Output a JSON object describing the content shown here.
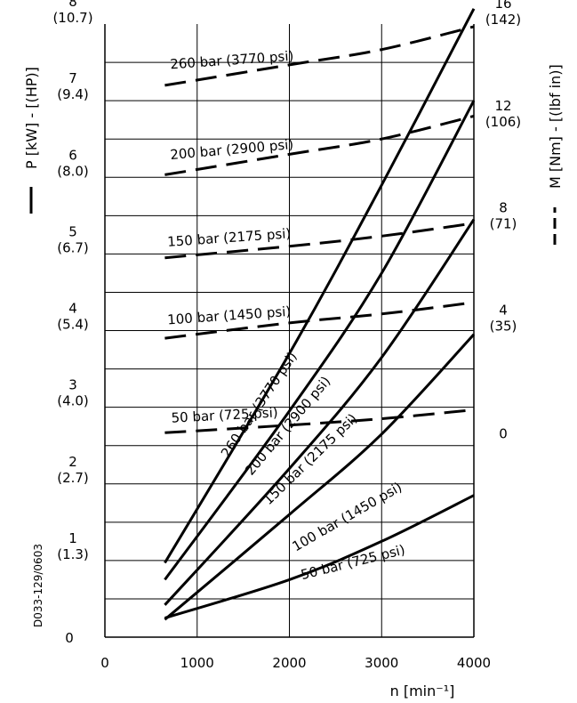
{
  "colors": {
    "ink": "#000000",
    "background": "#ffffff"
  },
  "chart_data": {
    "type": "line",
    "document_code": "D033-129/0603",
    "xlabel": "n [min⁻¹]",
    "x_ticks": [
      "0",
      "1000",
      "2000",
      "3000",
      "4000"
    ],
    "xlim": [
      0,
      4000
    ],
    "ylabel_left": "P [kW] - [(HP)]",
    "ylim_left": [
      0,
      8
    ],
    "y_ticks_left": [
      {
        "value": 0,
        "kw": "0",
        "hp": ""
      },
      {
        "value": 1,
        "kw": "1",
        "hp": "(1.3)"
      },
      {
        "value": 2,
        "kw": "2",
        "hp": "(2.7)"
      },
      {
        "value": 3,
        "kw": "3",
        "hp": "(4.0)"
      },
      {
        "value": 4,
        "kw": "4",
        "hp": "(5.4)"
      },
      {
        "value": 5,
        "kw": "5",
        "hp": "(6.7)"
      },
      {
        "value": 6,
        "kw": "6",
        "hp": "(8.0)"
      },
      {
        "value": 7,
        "kw": "7",
        "hp": "(9.4)"
      },
      {
        "value": 8,
        "kw": "8",
        "hp": "(10.7)"
      }
    ],
    "ylabel_right": "M [Nm] - [(lbf in)]",
    "ylim_right": [
      -8,
      16
    ],
    "y_ticks_right": [
      {
        "value": 0,
        "nm": "0",
        "lbf": ""
      },
      {
        "value": 4,
        "nm": "4",
        "lbf": "(35)"
      },
      {
        "value": 8,
        "nm": "8",
        "lbf": "(71)"
      },
      {
        "value": 12,
        "nm": "12",
        "lbf": "(106)"
      },
      {
        "value": 16,
        "nm": "16",
        "lbf": "(142)"
      }
    ],
    "grid": true,
    "power_series": [
      {
        "name": "260 bar (3770 psi)",
        "x": [
          650,
          2000,
          3000,
          4000
        ],
        "y": [
          0.97,
          3.7,
          5.9,
          8.2
        ],
        "label_pos": [
          1710,
          3.0
        ],
        "label_angle": -56
      },
      {
        "name": "200 bar (2900 psi)",
        "x": [
          650,
          2000,
          3000,
          4000
        ],
        "y": [
          0.75,
          2.95,
          4.75,
          7.0
        ],
        "label_pos": [
          2020,
          2.72
        ],
        "label_angle": -50
      },
      {
        "name": "150 bar (2175 psi)",
        "x": [
          650,
          2000,
          3000,
          4000
        ],
        "y": [
          0.42,
          2.2,
          3.65,
          5.45
        ],
        "label_pos": [
          2260,
          2.28
        ],
        "label_angle": -44
      },
      {
        "name": "100 bar (1450 psi)",
        "x": [
          650,
          2000,
          3000,
          4000
        ],
        "y": [
          0.23,
          1.6,
          2.65,
          3.95
        ],
        "label_pos": [
          2650,
          1.52
        ],
        "label_angle": -30
      },
      {
        "name": "50 bar (725 psi)",
        "x": [
          650,
          2000,
          3000,
          4000
        ],
        "y": [
          0.25,
          0.75,
          1.25,
          1.85
        ],
        "label_pos": [
          2700,
          0.92
        ],
        "label_angle": -14
      }
    ],
    "torque_series": [
      {
        "name": "260 bar (3770 psi)",
        "x": [
          650,
          2000,
          3000,
          4000
        ],
        "y": [
          13.6,
          14.4,
          15.0,
          15.9
        ],
        "label_pos": [
          1380,
          14.1
        ],
        "label_angle": -4
      },
      {
        "name": "200 bar (2900 psi)",
        "x": [
          650,
          2000,
          3000,
          4000
        ],
        "y": [
          10.1,
          10.9,
          11.5,
          12.4
        ],
        "label_pos": [
          1380,
          10.6
        ],
        "label_angle": -5
      },
      {
        "name": "150 bar (2175 psi)",
        "x": [
          650,
          2000,
          3000,
          4000
        ],
        "y": [
          6.85,
          7.3,
          7.7,
          8.2
        ],
        "label_pos": [
          1350,
          7.15
        ],
        "label_angle": -4
      },
      {
        "name": "100 bar (1450 psi)",
        "x": [
          650,
          2000,
          3000,
          4000
        ],
        "y": [
          3.7,
          4.3,
          4.65,
          5.1
        ],
        "label_pos": [
          1350,
          4.1
        ],
        "label_angle": -4
      },
      {
        "name": "50 bar (725 psi)",
        "x": [
          650,
          2000,
          3000,
          4000
        ],
        "y": [
          0.0,
          0.3,
          0.55,
          0.9
        ],
        "label_pos": [
          1300,
          0.2
        ],
        "label_angle": -3
      }
    ]
  }
}
